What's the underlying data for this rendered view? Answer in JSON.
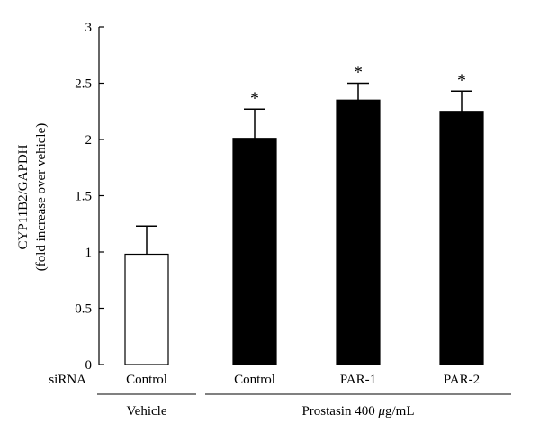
{
  "chart_data": {
    "type": "bar",
    "ylabel_line1": "CYP11B2/GAPDH",
    "ylabel_line2": "(fold increase over vehicle)",
    "ylim": [
      0,
      3
    ],
    "yticks": [
      0,
      0.5,
      1,
      1.5,
      2,
      2.5,
      3
    ],
    "ytick_labels": [
      "0",
      "0.5",
      "1",
      "1.5",
      "2",
      "2.5",
      "3"
    ],
    "row_label": "siRNA",
    "categories": [
      "Control",
      "Control",
      "PAR-1",
      "PAR-2"
    ],
    "values": [
      0.98,
      2.01,
      2.35,
      2.25
    ],
    "errors": [
      0.25,
      0.26,
      0.15,
      0.18
    ],
    "significance": [
      "",
      "*",
      "*",
      "*"
    ],
    "bar_fill": [
      "#ffffff",
      "#000000",
      "#000000",
      "#000000"
    ],
    "groups": [
      {
        "label": "Vehicle",
        "categories": [
          0
        ]
      },
      {
        "label_prefix": "Prostasin 400 ",
        "label_unit_italic": "μ",
        "label_suffix": "g/mL",
        "categories": [
          1,
          2,
          3
        ]
      }
    ],
    "grid": false,
    "legend": "none"
  }
}
